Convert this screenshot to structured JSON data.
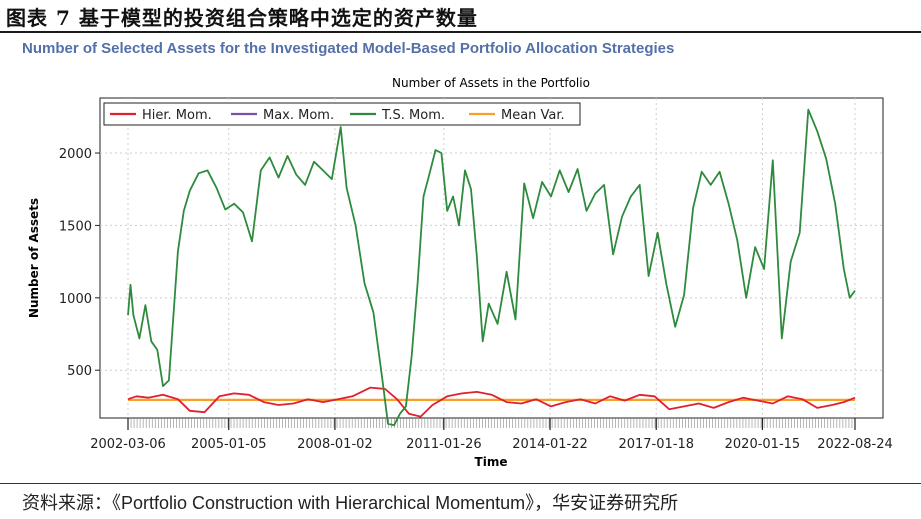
{
  "figure": {
    "heading": "图表 7 基于模型的投资组合策略中选定的资产数量",
    "subtitle": "Number of Selected Assets for the Investigated Model-Based Portfolio Allocation Strategies",
    "source": "资料来源：《Portfolio Construction with Hierarchical Momentum》，华安证券研究所"
  },
  "chart_data": {
    "type": "line",
    "title": "Number of Assets in the Portfolio",
    "xlabel": "Time",
    "ylabel": "Number of Assets",
    "x_start": "2002-03-06",
    "x_end": "2022-08-24",
    "x_ticks": [
      "2002-03-06",
      "2005-01-05",
      "2008-01-02",
      "2011-01-26",
      "2014-01-22",
      "2017-01-18",
      "2020-01-15",
      "2022-08-24"
    ],
    "y_ticks": [
      500,
      1000,
      1500,
      2000
    ],
    "ylim": [
      170,
      2380
    ],
    "grid": true,
    "legend_position": "top-left",
    "colors": {
      "Hier. Mom.": "#e0202e",
      "Max. Mom.": "#7a4fa8",
      "T.S. Mom.": "#2e8b3d",
      "Mean Var.": "#f4a02a"
    },
    "series": [
      {
        "name": "Hier. Mom.",
        "points": [
          [
            "2002-03-06",
            300
          ],
          [
            "2002-06-01",
            320
          ],
          [
            "2002-10-01",
            310
          ],
          [
            "2003-03-01",
            330
          ],
          [
            "2003-08-01",
            300
          ],
          [
            "2003-12-01",
            220
          ],
          [
            "2004-05-01",
            210
          ],
          [
            "2004-10-01",
            320
          ],
          [
            "2005-03-01",
            340
          ],
          [
            "2005-08-01",
            330
          ],
          [
            "2006-01-01",
            280
          ],
          [
            "2006-06-01",
            260
          ],
          [
            "2006-11-01",
            270
          ],
          [
            "2007-04-01",
            300
          ],
          [
            "2007-09-01",
            280
          ],
          [
            "2008-02-01",
            300
          ],
          [
            "2008-07-01",
            320
          ],
          [
            "2009-01-01",
            380
          ],
          [
            "2009-06-01",
            370
          ],
          [
            "2009-10-01",
            300
          ],
          [
            "2010-02-01",
            200
          ],
          [
            "2010-06-01",
            180
          ],
          [
            "2010-10-01",
            260
          ],
          [
            "2011-03-01",
            320
          ],
          [
            "2011-08-01",
            340
          ],
          [
            "2012-01-01",
            350
          ],
          [
            "2012-06-01",
            330
          ],
          [
            "2012-11-01",
            280
          ],
          [
            "2013-04-01",
            270
          ],
          [
            "2013-09-01",
            300
          ],
          [
            "2014-02-01",
            250
          ],
          [
            "2014-07-01",
            280
          ],
          [
            "2014-12-01",
            300
          ],
          [
            "2015-05-01",
            270
          ],
          [
            "2015-10-01",
            320
          ],
          [
            "2016-03-01",
            290
          ],
          [
            "2016-08-01",
            330
          ],
          [
            "2017-01-01",
            320
          ],
          [
            "2017-06-01",
            230
          ],
          [
            "2017-11-01",
            250
          ],
          [
            "2018-04-01",
            270
          ],
          [
            "2018-09-01",
            240
          ],
          [
            "2019-02-01",
            280
          ],
          [
            "2019-07-01",
            310
          ],
          [
            "2019-12-01",
            290
          ],
          [
            "2020-05-01",
            270
          ],
          [
            "2020-10-01",
            320
          ],
          [
            "2021-03-01",
            300
          ],
          [
            "2021-08-01",
            240
          ],
          [
            "2022-01-01",
            260
          ],
          [
            "2022-05-01",
            280
          ],
          [
            "2022-08-24",
            310
          ]
        ]
      },
      {
        "name": "Max. Mom.",
        "points": []
      },
      {
        "name": "T.S. Mom.",
        "points": [
          [
            "2002-03-06",
            880
          ],
          [
            "2002-04-01",
            1090
          ],
          [
            "2002-05-01",
            880
          ],
          [
            "2002-07-01",
            720
          ],
          [
            "2002-09-01",
            950
          ],
          [
            "2002-11-01",
            700
          ],
          [
            "2003-01-01",
            640
          ],
          [
            "2003-03-01",
            390
          ],
          [
            "2003-05-01",
            430
          ],
          [
            "2003-08-01",
            1320
          ],
          [
            "2003-10-01",
            1600
          ],
          [
            "2003-12-01",
            1740
          ],
          [
            "2004-03-01",
            1860
          ],
          [
            "2004-06-01",
            1880
          ],
          [
            "2004-09-01",
            1760
          ],
          [
            "2004-12-01",
            1610
          ],
          [
            "2005-03-01",
            1650
          ],
          [
            "2005-06-01",
            1590
          ],
          [
            "2005-09-01",
            1390
          ],
          [
            "2005-12-01",
            1880
          ],
          [
            "2006-03-01",
            1970
          ],
          [
            "2006-06-01",
            1830
          ],
          [
            "2006-09-01",
            1980
          ],
          [
            "2006-12-01",
            1850
          ],
          [
            "2007-03-01",
            1780
          ],
          [
            "2007-06-01",
            1940
          ],
          [
            "2007-09-01",
            1880
          ],
          [
            "2007-12-01",
            1820
          ],
          [
            "2008-03-01",
            2180
          ],
          [
            "2008-05-01",
            1760
          ],
          [
            "2008-08-01",
            1500
          ],
          [
            "2008-11-01",
            1100
          ],
          [
            "2009-02-01",
            900
          ],
          [
            "2009-05-01",
            450
          ],
          [
            "2009-07-01",
            130
          ],
          [
            "2009-09-01",
            120
          ],
          [
            "2009-11-01",
            200
          ],
          [
            "2010-01-01",
            250
          ],
          [
            "2010-03-01",
            600
          ],
          [
            "2010-05-01",
            1100
          ],
          [
            "2010-07-01",
            1700
          ],
          [
            "2010-09-01",
            1860
          ],
          [
            "2010-11-01",
            2020
          ],
          [
            "2011-01-01",
            2000
          ],
          [
            "2011-03-01",
            1600
          ],
          [
            "2011-05-01",
            1700
          ],
          [
            "2011-07-01",
            1500
          ],
          [
            "2011-09-01",
            1880
          ],
          [
            "2011-11-01",
            1750
          ],
          [
            "2012-01-01",
            1280
          ],
          [
            "2012-03-01",
            700
          ],
          [
            "2012-05-01",
            960
          ],
          [
            "2012-08-01",
            820
          ],
          [
            "2012-11-01",
            1180
          ],
          [
            "2013-02-01",
            850
          ],
          [
            "2013-05-01",
            1790
          ],
          [
            "2013-08-01",
            1550
          ],
          [
            "2013-11-01",
            1800
          ],
          [
            "2014-02-01",
            1700
          ],
          [
            "2014-05-01",
            1880
          ],
          [
            "2014-08-01",
            1730
          ],
          [
            "2014-11-01",
            1890
          ],
          [
            "2015-02-01",
            1600
          ],
          [
            "2015-05-01",
            1720
          ],
          [
            "2015-08-01",
            1780
          ],
          [
            "2015-11-01",
            1300
          ],
          [
            "2016-02-01",
            1560
          ],
          [
            "2016-05-01",
            1700
          ],
          [
            "2016-08-01",
            1780
          ],
          [
            "2016-11-01",
            1150
          ],
          [
            "2017-02-01",
            1450
          ],
          [
            "2017-05-01",
            1100
          ],
          [
            "2017-08-01",
            800
          ],
          [
            "2017-11-01",
            1020
          ],
          [
            "2018-02-01",
            1620
          ],
          [
            "2018-05-01",
            1870
          ],
          [
            "2018-08-01",
            1780
          ],
          [
            "2018-11-01",
            1870
          ],
          [
            "2019-02-01",
            1650
          ],
          [
            "2019-05-01",
            1400
          ],
          [
            "2019-08-01",
            1000
          ],
          [
            "2019-11-01",
            1350
          ],
          [
            "2020-02-01",
            1200
          ],
          [
            "2020-05-01",
            1950
          ],
          [
            "2020-08-01",
            720
          ],
          [
            "2020-11-01",
            1250
          ],
          [
            "2021-02-01",
            1450
          ],
          [
            "2021-05-01",
            2300
          ],
          [
            "2021-08-01",
            2150
          ],
          [
            "2021-11-01",
            1960
          ],
          [
            "2022-02-01",
            1650
          ],
          [
            "2022-05-01",
            1200
          ],
          [
            "2022-07-01",
            1000
          ],
          [
            "2022-08-24",
            1050
          ]
        ]
      },
      {
        "name": "Mean Var.",
        "points": [
          [
            "2002-03-06",
            295
          ],
          [
            "2022-08-24",
            295
          ]
        ]
      }
    ]
  }
}
